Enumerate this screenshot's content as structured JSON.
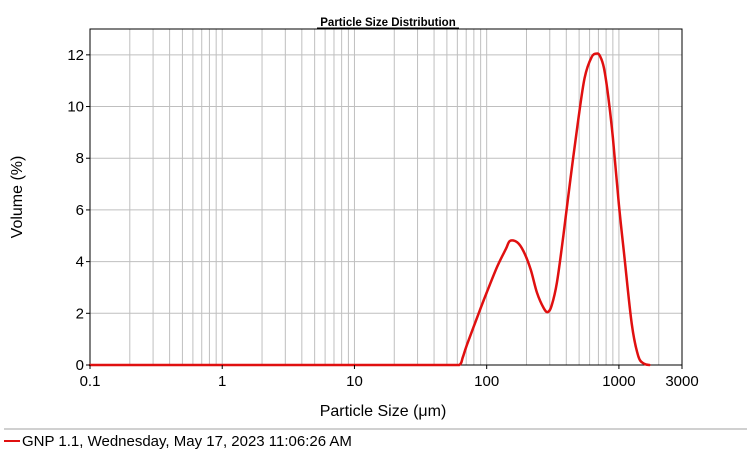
{
  "chart_data": {
    "type": "line",
    "title": "Particle Size Distribution",
    "xlabel": "Particle Size (μm)",
    "ylabel": "Volume (%)",
    "x_scale": "log",
    "xlim": [
      0.1,
      3000
    ],
    "ylim": [
      0,
      13
    ],
    "x_tick_labels": [
      "0.1",
      "1",
      "10",
      "100",
      "1000",
      "3000"
    ],
    "y_tick_labels": [
      "0",
      "2",
      "4",
      "6",
      "8",
      "10",
      "12"
    ],
    "grid": true,
    "legend_position": "bottom-left",
    "colors": {
      "series": "#e01010",
      "grid": "#bfbfbf",
      "axis": "#000000"
    },
    "series": [
      {
        "name": "GNP 1.1, Wednesday, May 17, 2023 11:06:26 AM",
        "x": [
          0.1,
          1,
          10,
          50,
          62,
          66,
          70,
          80,
          90,
          100,
          120,
          140,
          150,
          170,
          190,
          215,
          240,
          270,
          290,
          310,
          340,
          380,
          430,
          490,
          550,
          620,
          680,
          720,
          770,
          830,
          900,
          1000,
          1100,
          1250,
          1400,
          1550,
          1700
        ],
        "y": [
          0,
          0,
          0,
          0,
          0,
          0.3,
          0.7,
          1.5,
          2.2,
          2.8,
          3.8,
          4.5,
          4.8,
          4.75,
          4.4,
          3.7,
          2.8,
          2.2,
          2.05,
          2.3,
          3.2,
          5.0,
          7.2,
          9.4,
          11.1,
          11.9,
          12.05,
          11.95,
          11.5,
          10.4,
          8.8,
          6.2,
          4.2,
          1.6,
          0.35,
          0.05,
          0
        ]
      }
    ]
  }
}
